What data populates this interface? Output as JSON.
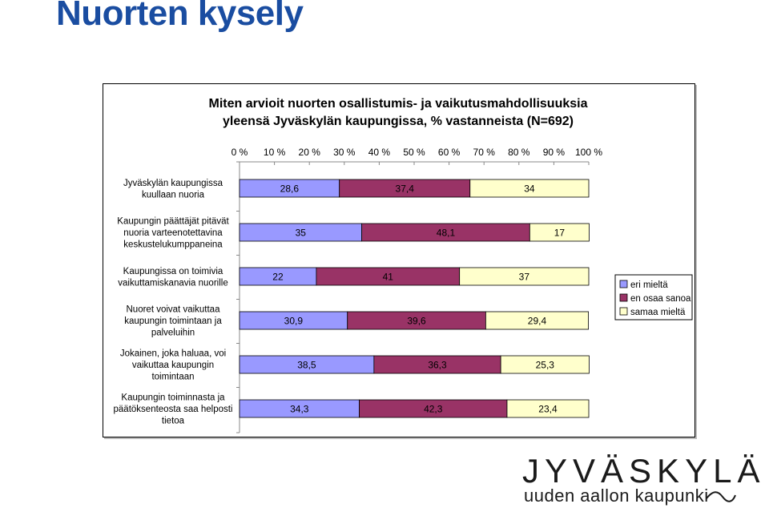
{
  "slide": {
    "title": "Nuorten kysely"
  },
  "logo": {
    "main": "JYVÄSKYLÄ",
    "sub": "uuden aallon kaupunki"
  },
  "chart_data": {
    "type": "bar",
    "orientation": "horizontal",
    "stacked": true,
    "title_lines": [
      "Miten arvioit nuorten osallistumis- ja vaikutusmahdollisuuksia",
      "yleensä Jyväskylän kaupungissa, % vastanneista (N=692)"
    ],
    "xlim": [
      0,
      100
    ],
    "x_ticks": [
      "0 %",
      "10 %",
      "20 %",
      "30 %",
      "40 %",
      "50 %",
      "60 %",
      "70 %",
      "80 %",
      "90 %",
      "100 %"
    ],
    "x_axis_position": "top",
    "legend_position": "right",
    "grid": false,
    "categories": [
      [
        "Jyväskylän kaupungissa",
        "kuullaan nuoria"
      ],
      [
        "Kaupungin päättäjät pitävät",
        "nuoria varteenotettavina",
        "keskustelukumppaneina"
      ],
      [
        "Kaupungissa on toimivia",
        "vaikuttamiskanavia nuorille"
      ],
      [
        "Nuoret voivat vaikuttaa",
        "kaupungin toimintaan ja",
        "palveluihin"
      ],
      [
        "Jokainen, joka haluaa, voi",
        "vaikuttaa kaupungin",
        "toimintaan"
      ],
      [
        "Kaupungin toiminnasta ja",
        "päätöksenteosta saa helposti",
        "tietoa"
      ]
    ],
    "series": [
      {
        "name": "eri mieltä",
        "color": "#9999ff",
        "values": [
          28.6,
          35,
          22,
          30.9,
          38.5,
          34.3
        ],
        "labels": [
          "28,6",
          "35",
          "22",
          "30,9",
          "38,5",
          "34,3"
        ]
      },
      {
        "name": "en osaa sanoa",
        "color": "#993366",
        "values": [
          37.4,
          48.1,
          41,
          39.6,
          36.3,
          42.3
        ],
        "labels": [
          "37,4",
          "48,1",
          "41",
          "39,6",
          "36,3",
          "42,3"
        ]
      },
      {
        "name": "samaa mieltä",
        "color": "#ffffcc",
        "values": [
          34,
          17,
          37,
          29.4,
          25.3,
          23.4
        ],
        "labels": [
          "34",
          "17",
          "37",
          "29,4",
          "25,3",
          "23,4"
        ]
      }
    ]
  }
}
